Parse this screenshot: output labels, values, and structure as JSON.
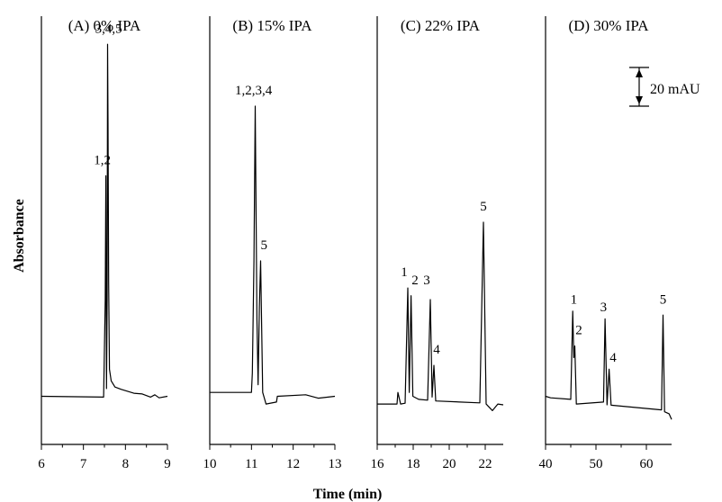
{
  "chart_data": {
    "type": "line",
    "xlabel": "Time (min)",
    "ylabel": "Absorbance",
    "scale_bar": {
      "label": "20 mAU",
      "value": 20
    },
    "panels": [
      {
        "title": "(A) 0% IPA",
        "xlim": [
          6,
          9
        ],
        "xticks": [
          6,
          7,
          8,
          9
        ],
        "baseline": 5,
        "points": [
          [
            6.0,
            5.0
          ],
          [
            7.48,
            4.8
          ],
          [
            7.52,
            30.0
          ],
          [
            7.535,
            62.0
          ],
          [
            7.55,
            7.0
          ],
          [
            7.565,
            30.0
          ],
          [
            7.575,
            96.0
          ],
          [
            7.585,
            75.0
          ],
          [
            7.6,
            34.0
          ],
          [
            7.62,
            12.0
          ],
          [
            7.66,
            9.0
          ],
          [
            7.75,
            7.4
          ],
          [
            7.9,
            6.8
          ],
          [
            8.2,
            5.8
          ],
          [
            8.4,
            5.6
          ],
          [
            8.6,
            4.8
          ],
          [
            8.7,
            5.4
          ],
          [
            8.8,
            4.6
          ],
          [
            9.0,
            5.0
          ]
        ],
        "peak_labels": [
          {
            "text": "3,4,5",
            "x": 7.6,
            "y": 99
          },
          {
            "text": "1,2",
            "x": 7.45,
            "y": 65
          }
        ]
      },
      {
        "title": "(B) 15% IPA",
        "xlim": [
          10,
          13
        ],
        "xticks": [
          10,
          11,
          12,
          13
        ],
        "baseline": 5,
        "points": [
          [
            10.0,
            6.0
          ],
          [
            11.0,
            6.0
          ],
          [
            11.02,
            11.0
          ],
          [
            11.06,
            40.0
          ],
          [
            11.09,
            80.0
          ],
          [
            11.13,
            25.0
          ],
          [
            11.16,
            8.0
          ],
          [
            11.19,
            28.0
          ],
          [
            11.22,
            40.0
          ],
          [
            11.27,
            6.0
          ],
          [
            11.35,
            3.0
          ],
          [
            11.6,
            3.5
          ],
          [
            11.62,
            5.0
          ],
          [
            12.3,
            5.4
          ],
          [
            12.6,
            4.5
          ],
          [
            13.0,
            5.0
          ]
        ],
        "peak_labels": [
          {
            "text": "1,2,3,4",
            "x": 11.05,
            "y": 83
          },
          {
            "text": "5",
            "x": 11.3,
            "y": 43
          }
        ]
      },
      {
        "title": "(C) 22% IPA",
        "xlim": [
          16,
          23
        ],
        "xticks": [
          16,
          18,
          20,
          22
        ],
        "baseline": 5,
        "points": [
          [
            16.0,
            3.0
          ],
          [
            17.1,
            3.0
          ],
          [
            17.15,
            6.0
          ],
          [
            17.3,
            3.0
          ],
          [
            17.55,
            3.2
          ],
          [
            17.7,
            33.0
          ],
          [
            17.78,
            6.0
          ],
          [
            17.88,
            31.0
          ],
          [
            17.98,
            5.0
          ],
          [
            18.3,
            4.2
          ],
          [
            18.8,
            4.0
          ],
          [
            18.95,
            30.0
          ],
          [
            19.05,
            4.8
          ],
          [
            19.15,
            13.0
          ],
          [
            19.25,
            3.8
          ],
          [
            21.7,
            3.3
          ],
          [
            21.9,
            50.0
          ],
          [
            22.05,
            3.0
          ],
          [
            22.4,
            1.3
          ],
          [
            22.7,
            3.0
          ],
          [
            23.0,
            2.8
          ]
        ],
        "peak_labels": [
          {
            "text": "1",
            "x": 17.5,
            "y": 36
          },
          {
            "text": "2",
            "x": 18.1,
            "y": 34
          },
          {
            "text": "3",
            "x": 18.75,
            "y": 34
          },
          {
            "text": "4",
            "x": 19.3,
            "y": 16
          },
          {
            "text": "5",
            "x": 21.9,
            "y": 53
          }
        ]
      },
      {
        "title": "(D) 30% IPA",
        "xlim": [
          40,
          65
        ],
        "xticks": [
          40,
          50,
          60
        ],
        "baseline": 5,
        "points": [
          [
            40.0,
            5.0
          ],
          [
            41.0,
            4.6
          ],
          [
            45.0,
            4.2
          ],
          [
            45.4,
            27.0
          ],
          [
            45.6,
            15.0
          ],
          [
            45.8,
            18.0
          ],
          [
            46.1,
            3.0
          ],
          [
            51.5,
            3.5
          ],
          [
            51.8,
            25.0
          ],
          [
            52.2,
            2.8
          ],
          [
            52.6,
            12.0
          ],
          [
            53.0,
            2.7
          ],
          [
            63.0,
            1.5
          ],
          [
            63.3,
            26.0
          ],
          [
            63.6,
            1.0
          ],
          [
            64.5,
            0.5
          ],
          [
            65.0,
            -1.0
          ]
        ],
        "peak_labels": [
          {
            "text": "1",
            "x": 45.6,
            "y": 29
          },
          {
            "text": "2",
            "x": 46.6,
            "y": 21
          },
          {
            "text": "3",
            "x": 51.5,
            "y": 27
          },
          {
            "text": "4",
            "x": 53.4,
            "y": 14
          },
          {
            "text": "5",
            "x": 63.3,
            "y": 29
          }
        ]
      }
    ]
  }
}
